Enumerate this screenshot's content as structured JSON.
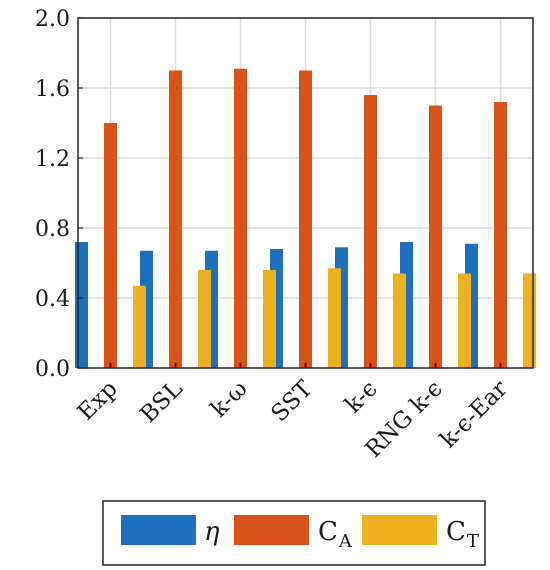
{
  "chart_data": {
    "type": "bar",
    "categories": [
      "Exp",
      "BSL",
      "k-ω",
      "SST",
      "k-ϵ",
      "RNG k-ϵ",
      "k-ϵ-Ear"
    ],
    "series": [
      {
        "name": "η",
        "color": "#1f6fbf",
        "values": [
          0.72,
          0.67,
          0.67,
          0.68,
          0.69,
          0.72,
          0.71
        ]
      },
      {
        "name": "C",
        "subscript": "A",
        "color": "#d95319",
        "values": [
          1.4,
          1.7,
          1.71,
          1.7,
          1.56,
          1.5,
          1.52
        ]
      },
      {
        "name": "C",
        "subscript": "T",
        "color": "#edb120",
        "values": [
          0.47,
          0.56,
          0.56,
          0.57,
          0.54,
          0.54,
          0.54
        ]
      }
    ],
    "yticks": [
      "0.0",
      "0.4",
      "0.8",
      "1.2",
      "1.6",
      "2.0"
    ],
    "ylim": [
      0,
      2.0
    ],
    "grid": true,
    "legend_position": "bottom"
  }
}
